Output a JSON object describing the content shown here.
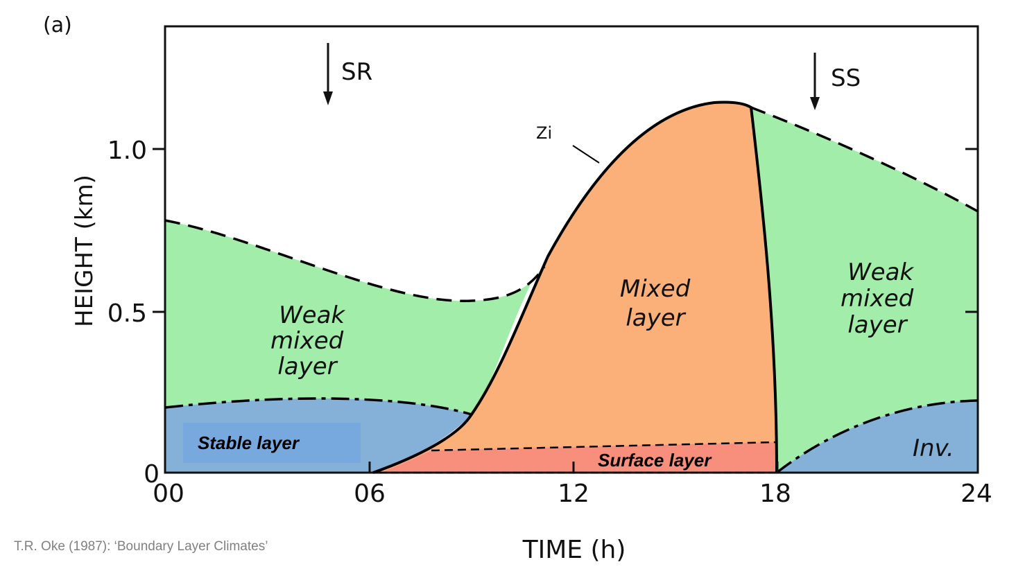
{
  "panel_label": "(a)",
  "axes": {
    "x_label": "TIME (h)",
    "y_label": "HEIGHT (km)",
    "x_ticks": [
      "00",
      "06",
      "12",
      "18",
      "24"
    ],
    "y_ticks": [
      "0",
      "0.5",
      "1.0"
    ]
  },
  "markers": {
    "sunrise": "SR",
    "sunset": "SS",
    "zi": "Zi"
  },
  "regions": {
    "weak_mixed_left": [
      "Weak",
      "mixed",
      "layer"
    ],
    "mixed": [
      "Mixed",
      "layer"
    ],
    "weak_mixed_right": [
      "Weak",
      "mixed",
      "layer"
    ],
    "stable": "Stable layer",
    "surface": "Surface layer",
    "inversion": "Inv."
  },
  "colors": {
    "weak_mixed": "#a3edaa",
    "mixed": "#fbb079",
    "stable": "#85b1d9",
    "stable_box": "#77a8de",
    "surface": "#f88e7c"
  },
  "credit": "T.R. Oke (1987): ‘Boundary Layer Climates’"
}
